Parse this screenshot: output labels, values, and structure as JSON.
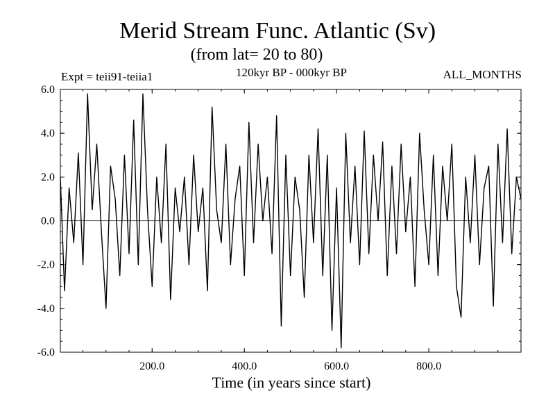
{
  "chart_data": {
    "type": "line",
    "title": "Merid Stream Func. Atlantic (Sv)",
    "subtitle": "(from lat= 20 to 80)",
    "period_label": "120kyr BP - 000kyr BP",
    "experiment_label": "Expt = teii91-teiia1",
    "months_label": "ALL_MONTHS",
    "xlabel": "Time (in years since start)",
    "ylabel": "",
    "xlim": [
      1,
      1000
    ],
    "ylim": [
      -6,
      6
    ],
    "x_ticks": [
      200,
      400,
      600,
      800
    ],
    "x_tick_labels": [
      "200.0",
      "400.0",
      "600.0",
      "800.0"
    ],
    "y_ticks": [
      -6,
      -4,
      -2,
      0,
      2,
      4,
      6
    ],
    "y_tick_labels": [
      "-6.0",
      "-4.0",
      "-2.0",
      "0.0",
      "2.0",
      "4.0",
      "6.0"
    ],
    "zero_line": true,
    "grid": false,
    "series": [
      {
        "color": "#000000",
        "x": [
          1,
          10,
          20,
          30,
          40,
          50,
          60,
          70,
          80,
          90,
          100,
          110,
          120,
          130,
          140,
          150,
          160,
          170,
          180,
          190,
          200,
          210,
          220,
          230,
          240,
          250,
          260,
          270,
          280,
          290,
          300,
          310,
          320,
          330,
          340,
          350,
          360,
          370,
          380,
          390,
          400,
          410,
          420,
          430,
          440,
          450,
          460,
          470,
          480,
          490,
          500,
          510,
          520,
          530,
          540,
          550,
          560,
          570,
          580,
          590,
          600,
          610,
          620,
          630,
          640,
          650,
          660,
          670,
          680,
          690,
          700,
          710,
          720,
          730,
          740,
          750,
          760,
          770,
          780,
          790,
          800,
          810,
          820,
          830,
          840,
          850,
          860,
          870,
          880,
          890,
          900,
          910,
          920,
          930,
          940,
          950,
          960,
          970,
          980,
          990,
          1000
        ],
        "y": [
          2.0,
          -3.2,
          1.5,
          -1.0,
          3.1,
          -2.0,
          5.8,
          0.5,
          3.5,
          -0.5,
          -4.0,
          2.5,
          1.0,
          -2.5,
          3.0,
          -1.5,
          4.6,
          -2.0,
          5.8,
          0.5,
          -3.0,
          2.0,
          -1.0,
          3.5,
          -3.6,
          1.5,
          -0.5,
          2.0,
          -2.0,
          3.0,
          -0.5,
          1.5,
          -3.2,
          5.2,
          0.5,
          -1.0,
          3.5,
          -2.0,
          1.0,
          2.5,
          -2.5,
          4.5,
          -1.0,
          3.5,
          0.0,
          2.0,
          -1.5,
          4.8,
          -4.8,
          3.0,
          -2.5,
          2.0,
          0.5,
          -3.5,
          3.0,
          -1.0,
          4.2,
          -2.5,
          3.0,
          -5.0,
          1.5,
          -5.8,
          4.0,
          -1.0,
          2.5,
          -2.0,
          4.1,
          -1.5,
          3.0,
          0.0,
          3.6,
          -2.5,
          2.5,
          -1.5,
          3.5,
          -0.5,
          2.0,
          -3.0,
          4.0,
          0.5,
          -2.0,
          3.0,
          -2.5,
          2.5,
          0.0,
          3.5,
          -3.0,
          -4.4,
          2.0,
          -1.0,
          3.0,
          -2.0,
          1.5,
          2.5,
          -3.9,
          3.5,
          -1.0,
          4.2,
          -1.5,
          2.0,
          1.0
        ]
      }
    ]
  }
}
